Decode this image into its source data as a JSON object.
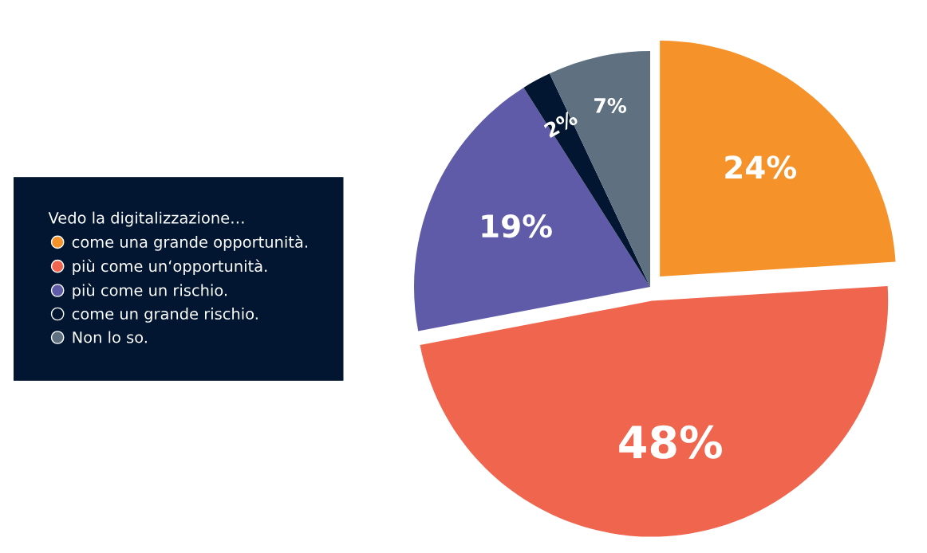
{
  "chart_data": {
    "type": "pie",
    "legend_title": "Vedo la digitalizzazione…",
    "categories": [
      "come una grande opportunità.",
      "più come un‘opportunità.",
      "più come un rischio.",
      "come un grande rischio.",
      "Non lo so."
    ],
    "values": [
      24,
      48,
      19,
      2,
      7
    ],
    "value_labels": [
      "24%",
      "48%",
      "19%",
      "2%",
      "7%"
    ],
    "colors": [
      "#f5922a",
      "#f0654e",
      "#5f5ba8",
      "#021631",
      "#5f7180"
    ],
    "legend": "left"
  }
}
